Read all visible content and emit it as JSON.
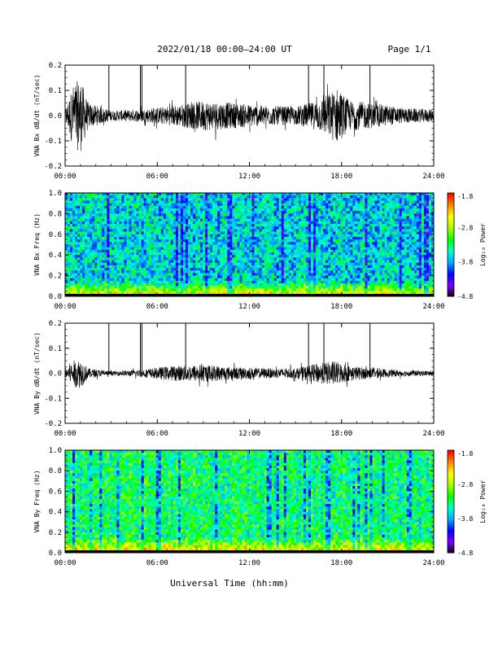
{
  "header": {
    "title": "2022/01/18  00:00–24:00 UT",
    "page": "Page 1/1"
  },
  "x_axis": {
    "label": "Universal Time (hh:mm)",
    "ticks": [
      "00:00",
      "06:00",
      "12:00",
      "18:00",
      "24:00"
    ]
  },
  "colorbar": {
    "label": "Log₁₀ Power",
    "ticks": [
      "-1.8",
      "-2.8",
      "-3.8",
      "-4.8"
    ]
  },
  "chart_data": [
    {
      "type": "line",
      "ylabel": "VNA Bx dB/dt (nT/sec)",
      "ylim": [
        -0.2,
        0.2
      ],
      "y_ticks": [
        "0.2",
        "0.1",
        "0.0",
        "-0.1",
        "-0.2"
      ],
      "xlim": [
        "00:00",
        "24:00"
      ],
      "description_series": "dB/dt waveform",
      "baseline": 0.0,
      "noise_envelope": [
        {
          "t": 0.0,
          "amp": 0.02
        },
        {
          "t": 0.5,
          "amp": 0.12
        },
        {
          "t": 1.0,
          "amp": 0.15
        },
        {
          "t": 1.5,
          "amp": 0.05
        },
        {
          "t": 3.0,
          "amp": 0.02
        },
        {
          "t": 5.0,
          "amp": 0.025
        },
        {
          "t": 7.0,
          "amp": 0.04
        },
        {
          "t": 9.0,
          "amp": 0.06
        },
        {
          "t": 11.0,
          "amp": 0.05
        },
        {
          "t": 13.0,
          "amp": 0.04
        },
        {
          "t": 15.0,
          "amp": 0.035
        },
        {
          "t": 16.5,
          "amp": 0.06
        },
        {
          "t": 17.7,
          "amp": 0.11
        },
        {
          "t": 18.5,
          "amp": 0.06
        },
        {
          "t": 20.0,
          "amp": 0.05
        },
        {
          "t": 22.0,
          "amp": 0.03
        },
        {
          "t": 24.0,
          "amp": 0.025
        }
      ],
      "spikes": [
        {
          "t": 2.85,
          "y": 0.2
        },
        {
          "t": 4.9,
          "y": 0.2
        },
        {
          "t": 5.0,
          "y": 0.2
        },
        {
          "t": 7.85,
          "y": 0.2
        },
        {
          "t": 15.85,
          "y": 0.2
        },
        {
          "t": 16.85,
          "y": 0.2
        },
        {
          "t": 19.85,
          "y": 0.2
        }
      ]
    },
    {
      "type": "heatmap",
      "ylabel": "VNA Bx Freq (Hz)",
      "ylim": [
        0.0,
        1.0
      ],
      "y_ticks": [
        "1.0",
        "0.8",
        "0.6",
        "0.4",
        "0.2",
        "0.0"
      ],
      "xlim": [
        "00:00",
        "24:00"
      ],
      "zlim": [
        -4.8,
        -1.8
      ],
      "background_level": -3.6,
      "low_freq_enhancement": -2.3
    },
    {
      "type": "line",
      "ylabel": "VNA By dB/dt (nT/sec)",
      "ylim": [
        -0.2,
        0.2
      ],
      "y_ticks": [
        "0.2",
        "0.1",
        "0.0",
        "-0.1",
        "-0.2"
      ],
      "xlim": [
        "00:00",
        "24:00"
      ],
      "baseline": 0.0,
      "noise_envelope": [
        {
          "t": 0.0,
          "amp": 0.02
        },
        {
          "t": 0.5,
          "amp": 0.05
        },
        {
          "t": 1.0,
          "amp": 0.06
        },
        {
          "t": 1.5,
          "amp": 0.02
        },
        {
          "t": 3.0,
          "amp": 0.008
        },
        {
          "t": 5.0,
          "amp": 0.015
        },
        {
          "t": 7.0,
          "amp": 0.03
        },
        {
          "t": 9.0,
          "amp": 0.035
        },
        {
          "t": 11.0,
          "amp": 0.025
        },
        {
          "t": 13.0,
          "amp": 0.02
        },
        {
          "t": 15.0,
          "amp": 0.02
        },
        {
          "t": 16.5,
          "amp": 0.04
        },
        {
          "t": 17.5,
          "amp": 0.05
        },
        {
          "t": 18.5,
          "amp": 0.03
        },
        {
          "t": 20.0,
          "amp": 0.02
        },
        {
          "t": 22.0,
          "amp": 0.012
        },
        {
          "t": 24.0,
          "amp": 0.01
        }
      ],
      "spikes": [
        {
          "t": 2.85,
          "y": 0.2
        },
        {
          "t": 4.9,
          "y": 0.2
        },
        {
          "t": 5.0,
          "y": 0.2
        },
        {
          "t": 7.85,
          "y": 0.2
        },
        {
          "t": 15.85,
          "y": 0.2
        },
        {
          "t": 16.85,
          "y": 0.2
        },
        {
          "t": 19.85,
          "y": 0.2
        }
      ]
    },
    {
      "type": "heatmap",
      "ylabel": "VNA By Freq (Hz)",
      "ylim": [
        0.0,
        1.0
      ],
      "y_ticks": [
        "1.0",
        "0.8",
        "0.6",
        "0.4",
        "0.2",
        "0.0"
      ],
      "xlim": [
        "00:00",
        "24:00"
      ],
      "zlim": [
        -4.8,
        -1.8
      ],
      "background_level": -3.3,
      "low_freq_enhancement": -2.3
    }
  ],
  "colors": {
    "trace": "#000000",
    "axes": "#000000",
    "colormap": [
      "#000000",
      "#7f00ff",
      "#0000ff",
      "#00aaff",
      "#00ffcc",
      "#00ff00",
      "#aaff00",
      "#ffff00",
      "#ff8800",
      "#ff0000"
    ]
  }
}
